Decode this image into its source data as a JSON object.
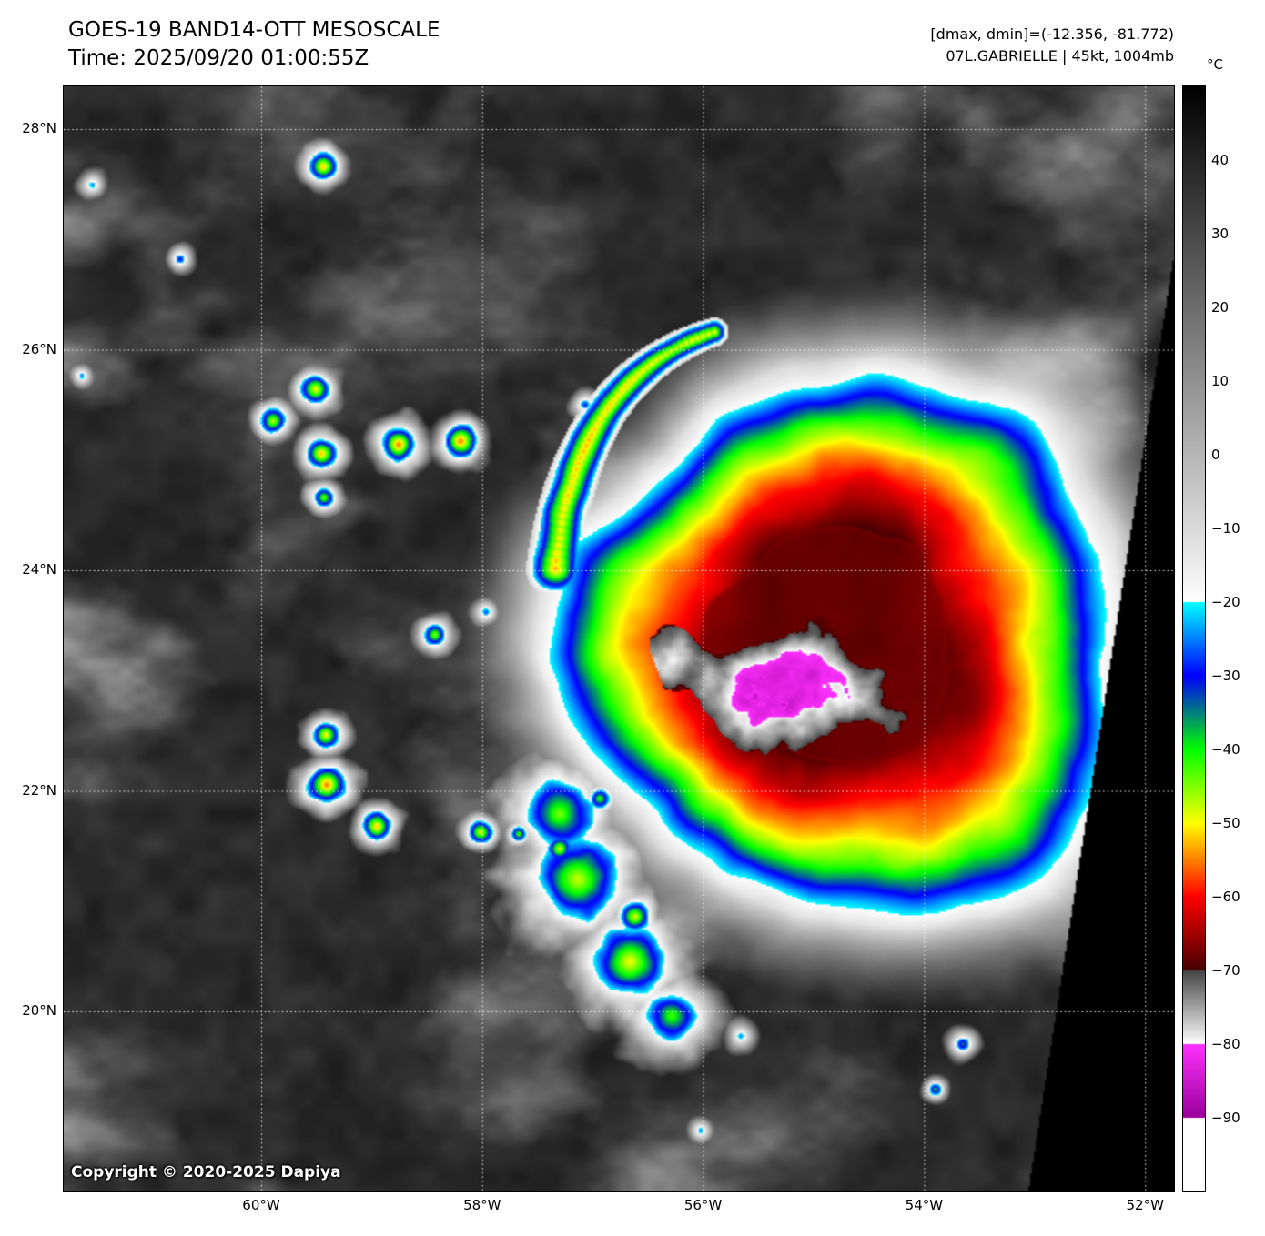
{
  "header": {
    "title": "GOES-19 BAND14-OTT MESOSCALE",
    "time_label": "Time: 2025/09/20 01:00:55Z",
    "dmax_dmin": "[dmax, dmin]=(-12.356, -81.772)",
    "storm_info": "07L.GABRIELLE | 45kt, 1004mb"
  },
  "map": {
    "lat_ticks": [
      "28°N",
      "26°N",
      "24°N",
      "22°N",
      "20°N"
    ],
    "lon_ticks": [
      "60°W",
      "58°W",
      "56°W",
      "54°W",
      "52°W"
    ],
    "copyright": "Copyright © 2020-2025 Dapiya"
  },
  "colorbar": {
    "unit": "°C",
    "ticks": [
      40,
      30,
      20,
      10,
      0,
      -10,
      -20,
      -30,
      -40,
      -50,
      -60,
      -70,
      -80,
      -90
    ]
  },
  "storm": {
    "id": "07L",
    "name": "GABRIELLE",
    "intensity": "45kt",
    "pressure": "1004mb",
    "dmax": "-12.356",
    "dmin": "-81.772"
  }
}
